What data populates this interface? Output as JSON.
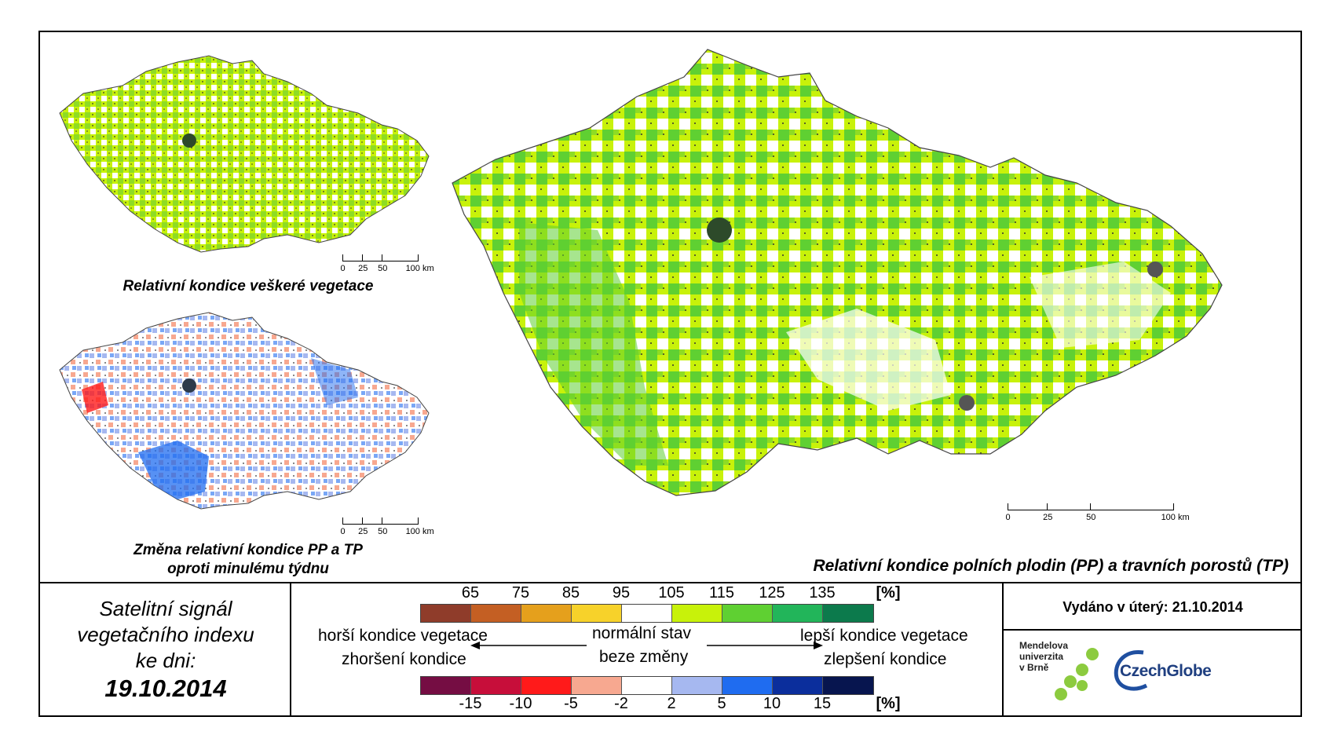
{
  "maps": {
    "top_left": {
      "caption": "Relativní kondice veškeré vegetace",
      "scale_labels": [
        "0",
        "25",
        "50",
        "100 km"
      ]
    },
    "bottom_left": {
      "caption_line1": "Změna relativní kondice PP a TP",
      "caption_line2": "oproti minulému týdnu",
      "scale_labels": [
        "0",
        "25",
        "50",
        "100 km"
      ]
    },
    "main": {
      "caption": "Relativní kondice polních plodin (PP) a travních porostů (TP)",
      "scale_labels": [
        "0",
        "25",
        "50",
        "100 km"
      ]
    }
  },
  "info": {
    "line1": "Satelitní signál",
    "line2": "vegetačního indexu",
    "line3": "ke dni:",
    "date": "19.10.2014"
  },
  "legend": {
    "condition": {
      "ticks": [
        "65",
        "75",
        "85",
        "95",
        "105",
        "115",
        "125",
        "135"
      ],
      "unit": "[%]",
      "colors": [
        "#8f3c2a",
        "#c45f23",
        "#e5a01c",
        "#f7d22a",
        "#ffffff",
        "#c8f20a",
        "#5fd032",
        "#22b55a",
        "#0c7a4c"
      ]
    },
    "change": {
      "ticks": [
        "-15",
        "-10",
        "-5",
        "-2",
        "2",
        "5",
        "10",
        "15"
      ],
      "unit": "[%]",
      "colors": [
        "#750d43",
        "#c70e3a",
        "#ff1a1a",
        "#f7a890",
        "#ffffff",
        "#a6b8f0",
        "#1f6cf0",
        "#0b2e9c",
        "#07154f"
      ]
    },
    "worse_line1": "horší kondice vegetace",
    "worse_line2": "zhoršení kondice",
    "normal_line1": "normální stav",
    "normal_line2": "beze změny",
    "better_line1": "lepší kondice vegetace",
    "better_line2": "zlepšení kondice"
  },
  "issued": "Vydáno v úterý: 21.10.2014",
  "logos": {
    "mendel_line1": "Mendelova",
    "mendel_line2": "univerzita",
    "mendel_line3": "v Brně",
    "czechglobe": "CzechGlobe"
  }
}
